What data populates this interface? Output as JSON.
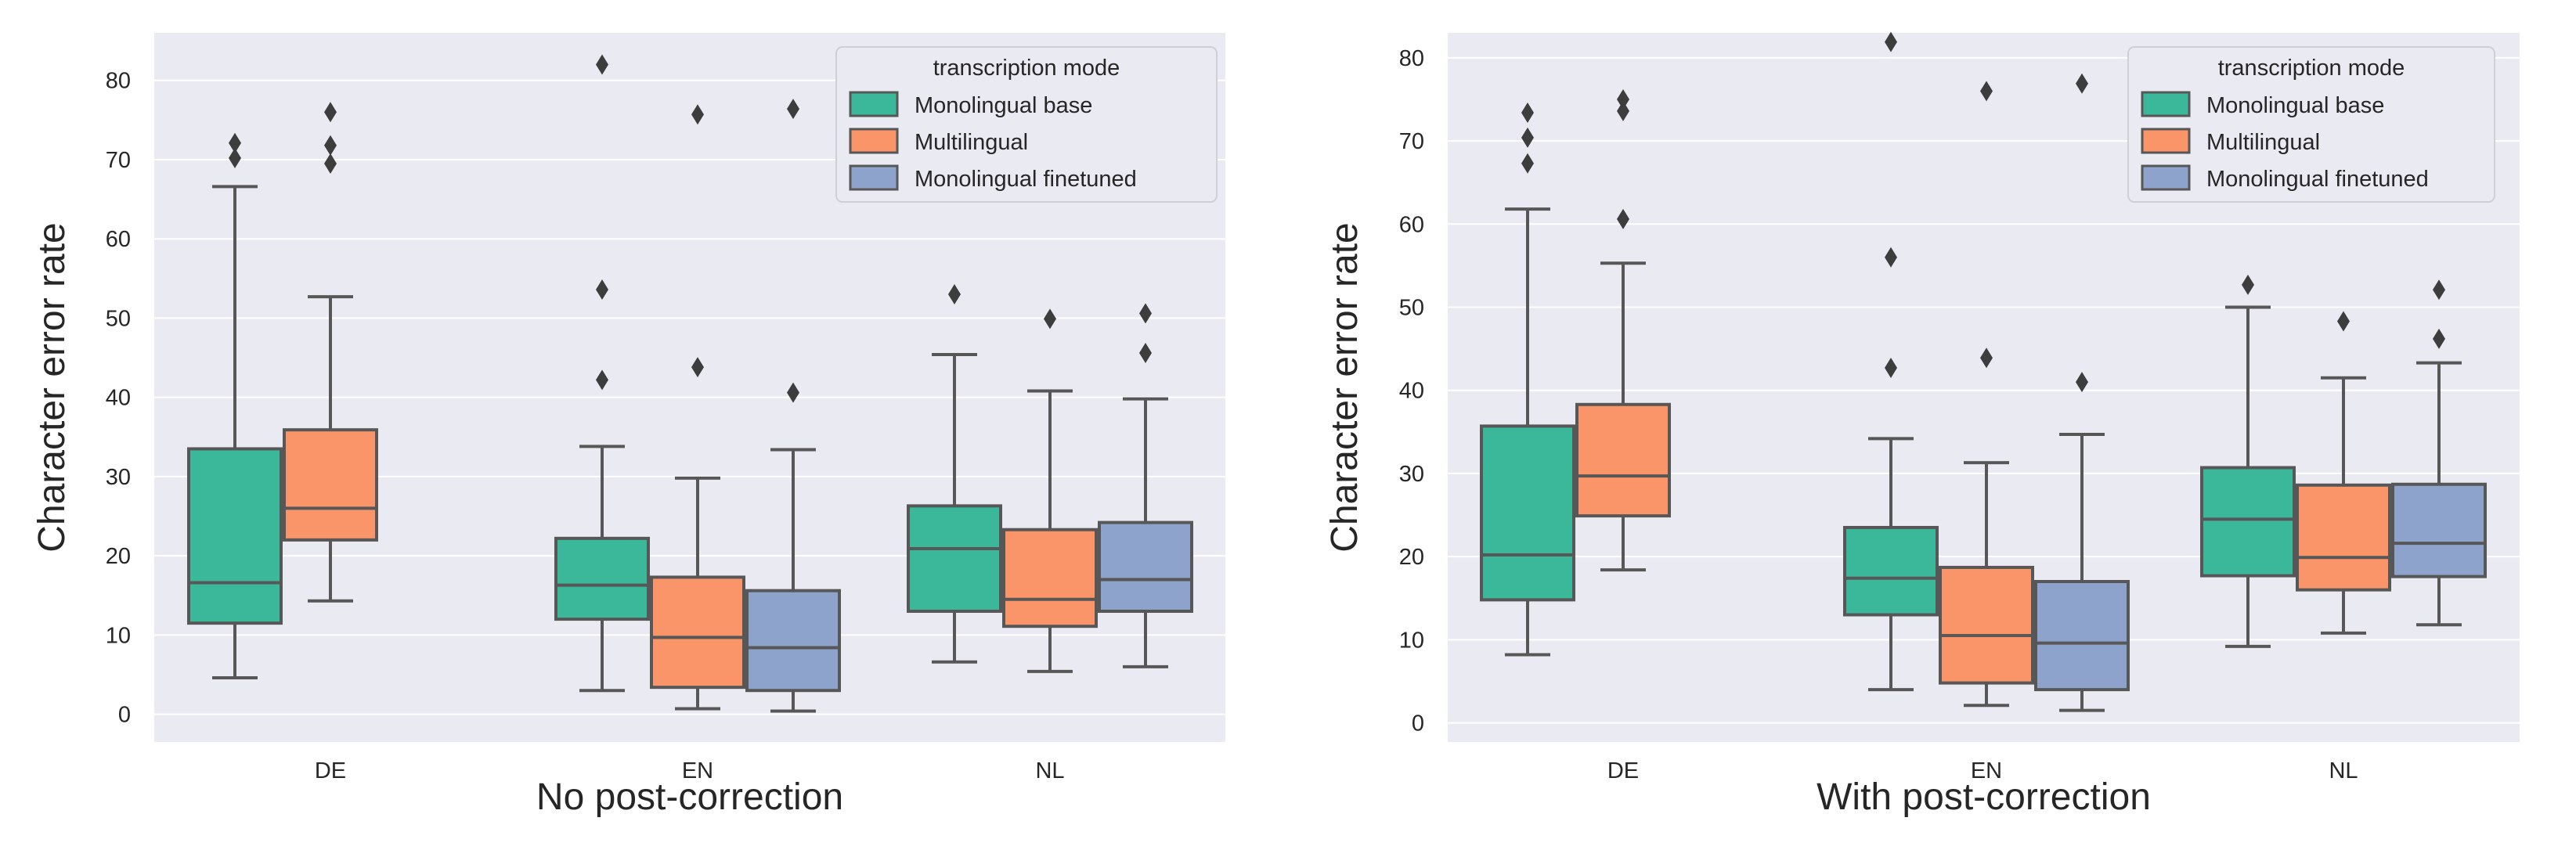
{
  "chart_data": [
    {
      "type": "box",
      "title": "",
      "xlabel": "No post-correction",
      "ylabel": "Character error rate",
      "categories": [
        "DE",
        "EN",
        "NL"
      ],
      "yticks": [
        0,
        10,
        20,
        30,
        40,
        50,
        60,
        70,
        80
      ],
      "ylim": [
        -3.5,
        86
      ],
      "grid": true,
      "legend": {
        "title": "transcription mode",
        "position": "top-right"
      },
      "series": [
        {
          "name": "Monolingual base",
          "color": "#3bb89a",
          "boxes": [
            {
              "category": "DE",
              "whislo": 4.6,
              "q1": 11.5,
              "med": 16.6,
              "q3": 33.5,
              "whishi": 66.6,
              "fliers": [
                70.2,
                72.1
              ]
            },
            {
              "category": "EN",
              "whislo": 3.0,
              "q1": 12.0,
              "med": 16.3,
              "q3": 22.2,
              "whishi": 33.8,
              "fliers": [
                42.2,
                53.6,
                82.0
              ]
            },
            {
              "category": "NL",
              "whislo": 6.6,
              "q1": 13.0,
              "med": 20.9,
              "q3": 26.3,
              "whishi": 45.4,
              "fliers": [
                53.0
              ]
            }
          ]
        },
        {
          "name": "Multilingual",
          "color": "#f99569",
          "boxes": [
            {
              "category": "DE",
              "whislo": 14.3,
              "q1": 22.0,
              "med": 26.0,
              "q3": 35.9,
              "whishi": 52.7,
              "fliers": [
                69.5,
                71.8,
                76.0
              ]
            },
            {
              "category": "EN",
              "whislo": 0.7,
              "q1": 3.4,
              "med": 9.7,
              "q3": 17.3,
              "whishi": 29.8,
              "fliers": [
                43.8,
                75.7
              ]
            },
            {
              "category": "NL",
              "whislo": 5.4,
              "q1": 11.1,
              "med": 14.5,
              "q3": 23.3,
              "whishi": 40.8,
              "fliers": [
                49.9
              ]
            }
          ]
        },
        {
          "name": "Monolingual finetuned",
          "color": "#8ea3cc",
          "boxes": [
            {
              "category": "EN",
              "whislo": 0.4,
              "q1": 3.0,
              "med": 8.4,
              "q3": 15.6,
              "whishi": 33.4,
              "fliers": [
                40.6,
                76.4
              ]
            },
            {
              "category": "NL",
              "whislo": 6.0,
              "q1": 13.0,
              "med": 17.0,
              "q3": 24.2,
              "whishi": 39.8,
              "fliers": [
                45.6,
                50.6
              ]
            }
          ]
        }
      ]
    },
    {
      "type": "box",
      "title": "",
      "xlabel": "With post-correction",
      "ylabel": "Character error rate",
      "categories": [
        "DE",
        "EN",
        "NL"
      ],
      "yticks": [
        0,
        10,
        20,
        30,
        40,
        50,
        60,
        70,
        80
      ],
      "ylim": [
        -2.3,
        83
      ],
      "grid": true,
      "legend": {
        "title": "transcription mode",
        "position": "top-right"
      },
      "series": [
        {
          "name": "Monolingual base",
          "color": "#3bb89a",
          "boxes": [
            {
              "category": "DE",
              "whislo": 8.2,
              "q1": 14.8,
              "med": 20.2,
              "q3": 35.7,
              "whishi": 61.8,
              "fliers": [
                67.3,
                70.4,
                73.4
              ]
            },
            {
              "category": "EN",
              "whislo": 4.0,
              "q1": 13.0,
              "med": 17.4,
              "q3": 23.5,
              "whishi": 34.2,
              "fliers": [
                42.7,
                56.0,
                81.9
              ]
            },
            {
              "category": "NL",
              "whislo": 9.2,
              "q1": 17.7,
              "med": 24.5,
              "q3": 30.7,
              "whishi": 50.0,
              "fliers": [
                52.7
              ]
            }
          ]
        },
        {
          "name": "Multilingual",
          "color": "#f99569",
          "boxes": [
            {
              "category": "DE",
              "whislo": 18.4,
              "q1": 24.9,
              "med": 29.7,
              "q3": 38.3,
              "whishi": 55.3,
              "fliers": [
                60.6,
                73.6,
                75.0
              ]
            },
            {
              "category": "EN",
              "whislo": 2.1,
              "q1": 4.8,
              "med": 10.5,
              "q3": 18.7,
              "whishi": 31.3,
              "fliers": [
                43.9,
                76.0
              ]
            },
            {
              "category": "NL",
              "whislo": 10.8,
              "q1": 16.0,
              "med": 19.9,
              "q3": 28.6,
              "whishi": 41.5,
              "fliers": [
                48.3
              ]
            }
          ]
        },
        {
          "name": "Monolingual finetuned",
          "color": "#8ea3cc",
          "boxes": [
            {
              "category": "EN",
              "whislo": 1.5,
              "q1": 4.0,
              "med": 9.6,
              "q3": 17.0,
              "whishi": 34.7,
              "fliers": [
                41.0,
                76.9
              ]
            },
            {
              "category": "NL",
              "whislo": 11.8,
              "q1": 17.6,
              "med": 21.6,
              "q3": 28.7,
              "whishi": 43.3,
              "fliers": [
                46.2,
                52.1
              ]
            }
          ]
        }
      ]
    }
  ]
}
